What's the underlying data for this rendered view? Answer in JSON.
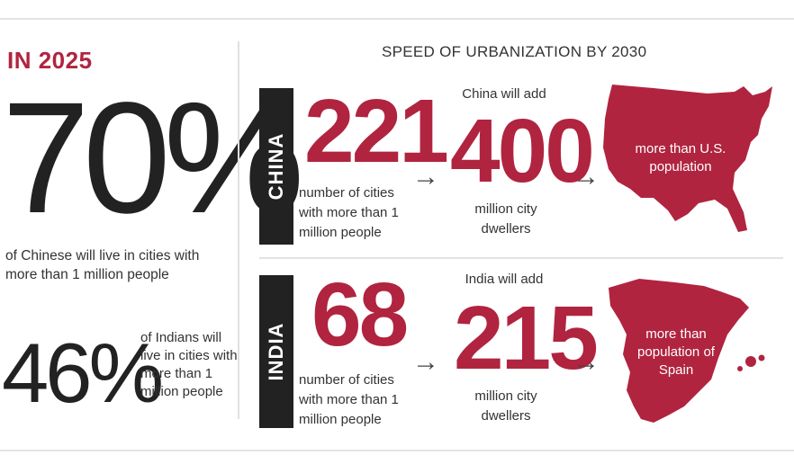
{
  "left": {
    "heading": "IN 2025",
    "china_percent": "70%",
    "china_desc": "of Chinese will live in cities with more than 1 million people",
    "india_percent": "46%",
    "india_desc": "of Indians will live in cities with more than 1 million people"
  },
  "right": {
    "title": "SPEED OF URBANIZATION BY 2030",
    "china": {
      "band_label": "CHINA",
      "cities_count": "221",
      "cities_desc": "number of cities with more than 1 million people",
      "will_add_label": "China will add",
      "add_count": "400",
      "add_desc": "million city dwellers",
      "map_label": "more than U.S. population"
    },
    "india": {
      "band_label": "INDIA",
      "cities_count": "68",
      "cities_desc": "number of cities with more than 1 million people",
      "will_add_label": "India will add",
      "add_count": "215",
      "add_desc": "million city dwellers",
      "map_label": "more than population of Spain"
    }
  },
  "colors": {
    "accent": "#b0243f",
    "band": "#222222",
    "text": "#333333"
  },
  "icons": [
    "arrow-right-icon",
    "usa-map-icon",
    "spain-map-icon"
  ]
}
